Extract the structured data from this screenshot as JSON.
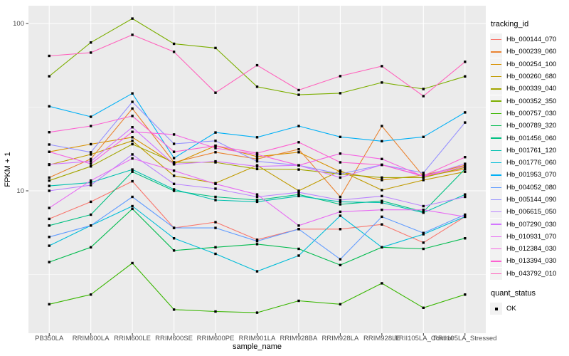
{
  "chart_data": {
    "type": "line",
    "title": "",
    "xlabel": "sample_name",
    "ylabel": "FPKM + 1",
    "y_scale": "log10",
    "y_ticks": [
      {
        "value": 100,
        "label": "100"
      },
      {
        "value": 10,
        "label": "10"
      }
    ],
    "y_minor": [
      31.623,
      3.162
    ],
    "ylim": [
      1.4,
      128
    ],
    "grid": true,
    "legend_position": "right",
    "marker": "filled-square",
    "categories": [
      "PB350LA",
      "RRIM600LA",
      "RRIM600LE",
      "RRIM600SE",
      "RRIM600PE",
      "RRIM901LA",
      "RRIM928BA",
      "RRIM928LA",
      "RRIM928LE",
      "RRII105LA_Control",
      "RRII105LA_Stressed"
    ],
    "series": [
      {
        "name": "Hb_000144_070",
        "color": "#F8766D",
        "quant_status": "OK",
        "values": [
          6.8,
          8.6,
          11.4,
          6.0,
          6.5,
          5.1,
          5.9,
          5.9,
          6.3,
          4.9,
          7.0
        ]
      },
      {
        "name": "Hb_000239_060",
        "color": "#EA8331",
        "quant_status": "OK",
        "values": [
          12.0,
          15.5,
          31.0,
          14.8,
          17.0,
          15.5,
          17.7,
          9.2,
          24.4,
          12.2,
          13.5
        ]
      },
      {
        "name": "Hb_000254_100",
        "color": "#D89000",
        "quant_status": "OK",
        "values": [
          17.1,
          19.0,
          20.9,
          14.5,
          18.6,
          16.0,
          17.0,
          13.0,
          11.6,
          12.4,
          14.2
        ]
      },
      {
        "name": "Hb_000260_680",
        "color": "#C09B00",
        "quant_status": "OK",
        "values": [
          14.3,
          16.5,
          19.9,
          12.3,
          11.1,
          14.2,
          10.0,
          13.2,
          10.1,
          11.6,
          13.0
        ]
      },
      {
        "name": "Hb_000339_040",
        "color": "#A3A500",
        "quant_status": "OK",
        "values": [
          11.5,
          14.0,
          19.0,
          14.8,
          14.8,
          13.5,
          13.4,
          12.6,
          12.0,
          12.0,
          13.8
        ]
      },
      {
        "name": "Hb_000352_350",
        "color": "#7CAE00",
        "quant_status": "OK",
        "values": [
          48.4,
          77.0,
          107.0,
          75.6,
          71.4,
          41.9,
          37.5,
          38.3,
          44.4,
          40.6,
          48.3
        ]
      },
      {
        "name": "Hb_000757_030",
        "color": "#39B600",
        "quant_status": "OK",
        "values": [
          2.1,
          2.4,
          3.7,
          1.95,
          1.9,
          1.87,
          2.2,
          2.1,
          2.8,
          2.0,
          2.4
        ]
      },
      {
        "name": "Hb_000789_320",
        "color": "#00BB4E",
        "quant_status": "OK",
        "values": [
          3.75,
          4.6,
          7.8,
          4.4,
          4.6,
          4.8,
          4.5,
          3.6,
          4.6,
          4.5,
          5.2
        ]
      },
      {
        "name": "Hb_001456_060",
        "color": "#00C081",
        "quant_status": "OK",
        "values": [
          6.2,
          7.2,
          13.0,
          10.0,
          9.2,
          8.8,
          9.5,
          8.3,
          8.7,
          7.5,
          13.5
        ]
      },
      {
        "name": "Hb_001761_120",
        "color": "#00C0AF",
        "quant_status": "OK",
        "values": [
          10.7,
          11.2,
          13.4,
          10.2,
          8.8,
          8.6,
          9.3,
          8.6,
          8.5,
          7.4,
          9.5
        ]
      },
      {
        "name": "Hb_001776_060",
        "color": "#00BCD8",
        "quant_status": "OK",
        "values": [
          4.7,
          6.2,
          8.1,
          5.2,
          4.2,
          3.3,
          4.1,
          7.1,
          4.6,
          5.5,
          7.0
        ]
      },
      {
        "name": "Hb_001953_070",
        "color": "#00B0F6",
        "quant_status": "OK",
        "values": [
          32.0,
          27.7,
          38.2,
          15.7,
          22.3,
          20.9,
          24.4,
          21.0,
          19.8,
          21.0,
          29.4
        ]
      },
      {
        "name": "Hb_004052_080",
        "color": "#619CFF",
        "quant_status": "OK",
        "values": [
          5.3,
          6.2,
          9.2,
          6.0,
          6.0,
          5.0,
          5.9,
          3.9,
          7.0,
          5.6,
          7.2
        ]
      },
      {
        "name": "Hb_005144_090",
        "color": "#9590FF",
        "quant_status": "OK",
        "values": [
          18.9,
          17.0,
          34.0,
          19.1,
          19.9,
          15.0,
          14.2,
          12.6,
          14.3,
          12.8,
          25.6
        ]
      },
      {
        "name": "Hb_006615_050",
        "color": "#B983FF",
        "quant_status": "OK",
        "values": [
          10.0,
          10.8,
          16.5,
          11.0,
          10.3,
          9.2,
          9.8,
          8.8,
          9.3,
          8.1,
          9.2
        ]
      },
      {
        "name": "Hb_007290_030",
        "color": "#D376FF",
        "quant_status": "OK",
        "values": [
          14.4,
          15.0,
          24.0,
          14.4,
          15.0,
          14.0,
          14.2,
          12.0,
          14.3,
          12.2,
          14.5
        ]
      },
      {
        "name": "Hb_010931_070",
        "color": "#E76BF3",
        "quant_status": "OK",
        "values": [
          7.9,
          11.5,
          15.6,
          13.2,
          11.0,
          9.5,
          6.2,
          7.5,
          7.7,
          7.7,
          7.0
        ]
      },
      {
        "name": "Hb_012384_030",
        "color": "#F564E3",
        "quant_status": "OK",
        "values": [
          17.1,
          14.5,
          22.5,
          21.7,
          18.0,
          16.5,
          14.2,
          16.7,
          15.5,
          12.2,
          14.0
        ]
      },
      {
        "name": "Hb_013394_030",
        "color": "#FD61D1",
        "quant_status": "OK",
        "values": [
          22.4,
          24.4,
          28.0,
          17.1,
          18.6,
          16.8,
          19.5,
          14.8,
          14.3,
          12.3,
          15.9
        ]
      },
      {
        "name": "Hb_043792_010",
        "color": "#FF62BC",
        "quant_status": "OK",
        "values": [
          64.0,
          67.0,
          85.6,
          67.7,
          38.6,
          56.3,
          40.0,
          48.5,
          55.6,
          36.8,
          59.0
        ]
      }
    ],
    "legend": {
      "color_title": "tracking_id",
      "shape_title": "quant_status",
      "shape_entries": [
        {
          "label": "OK"
        }
      ]
    }
  },
  "colors": {
    "panel_bg": "#EBEBEB",
    "grid": "#FFFFFF",
    "page_bg": "#FFFFFF",
    "axis_text": "#4D4D4D",
    "tick_mark": "#333333",
    "title_text": "#000000",
    "legend_key_bg": "#F2F2F2",
    "point": "#000000"
  }
}
